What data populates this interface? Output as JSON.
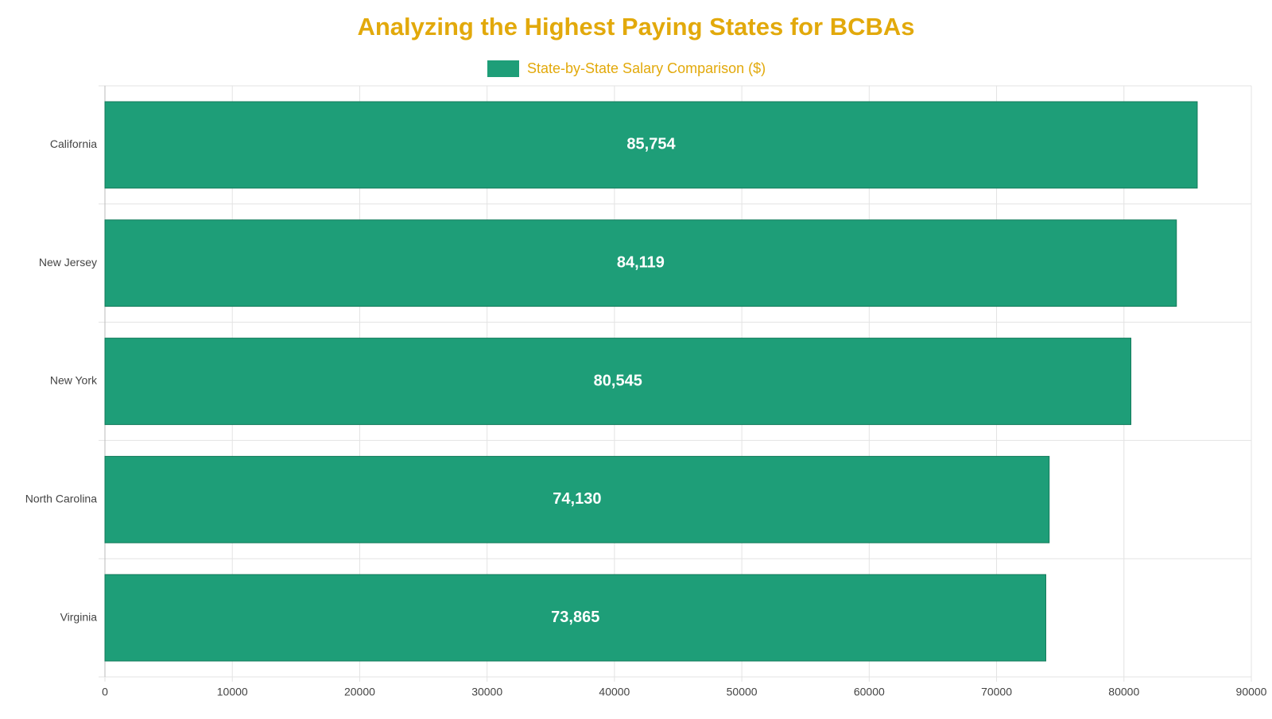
{
  "chart_data": {
    "type": "bar",
    "orientation": "horizontal",
    "title": "Analyzing the Highest Paying States for BCBAs",
    "categories": [
      "California",
      "New Jersey",
      "New York",
      "North Carolina",
      "Virginia"
    ],
    "series": [
      {
        "name": "State-by-State Salary Comparison ($)",
        "color": "#1e9e78",
        "values": [
          85754,
          84119,
          80545,
          74130,
          73865
        ],
        "value_labels": [
          "85,754",
          "84,119",
          "80,545",
          "74,130",
          "73,865"
        ]
      }
    ],
    "xlim": [
      0,
      90000
    ],
    "xticks": [
      0,
      10000,
      20000,
      30000,
      40000,
      50000,
      60000,
      70000,
      80000,
      90000
    ],
    "grid": true
  }
}
